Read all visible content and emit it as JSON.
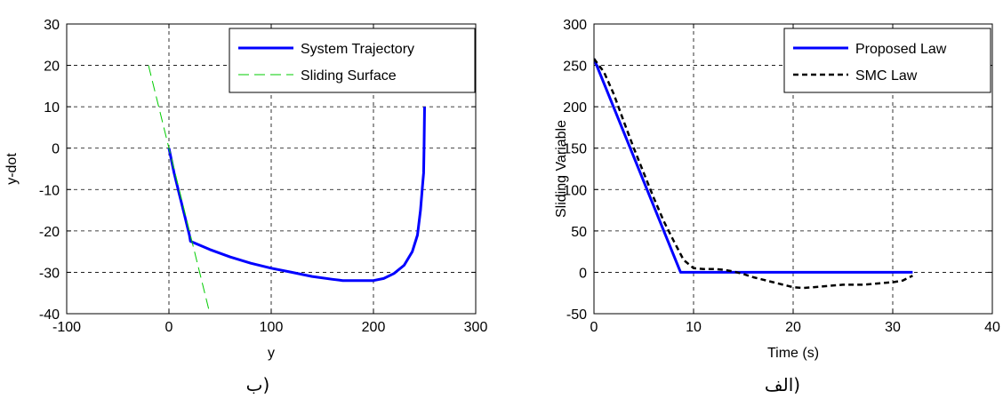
{
  "chart_data": [
    {
      "type": "line",
      "caption": "(ب",
      "xlabel": "y",
      "ylabel": "y-dot",
      "xlim": [
        -100,
        300
      ],
      "ylim": [
        -40,
        30
      ],
      "xticks": [
        "-100",
        "0",
        "100",
        "200",
        "300"
      ],
      "yticks": [
        "-40",
        "-30",
        "-20",
        "-10",
        "0",
        "10",
        "20",
        "30"
      ],
      "grid": true,
      "legend_position": "top-right",
      "series": [
        {
          "name": "System Trajectory",
          "color": "#0000ff",
          "style": "solid",
          "points": [
            [
              0,
              0
            ],
            [
              5,
              -6
            ],
            [
              10,
              -11
            ],
            [
              15,
              -16
            ],
            [
              20,
              -21
            ],
            [
              21,
              -22.5
            ],
            [
              40,
              -24.5
            ],
            [
              60,
              -26.3
            ],
            [
              80,
              -27.8
            ],
            [
              100,
              -29
            ],
            [
              120,
              -30
            ],
            [
              140,
              -31
            ],
            [
              160,
              -31.7
            ],
            [
              170,
              -32
            ],
            [
              200,
              -32
            ],
            [
              210,
              -31.5
            ],
            [
              220,
              -30.3
            ],
            [
              230,
              -28.3
            ],
            [
              238,
              -25
            ],
            [
              243,
              -21
            ],
            [
              246,
              -15
            ],
            [
              248,
              -9
            ],
            [
              249,
              -6
            ],
            [
              249.5,
              0
            ],
            [
              250,
              10
            ]
          ]
        },
        {
          "name": "Sliding Surface",
          "color": "#00cc00",
          "style": "dashed",
          "points": [
            [
              -20,
              20
            ],
            [
              40,
              -40
            ]
          ]
        }
      ]
    },
    {
      "type": "line",
      "caption": "(الف",
      "xlabel": "Time (s)",
      "ylabel": "Sliding Variable",
      "xlim": [
        0,
        40
      ],
      "ylim": [
        -50,
        300
      ],
      "xticks": [
        "0",
        "10",
        "20",
        "30",
        "40"
      ],
      "yticks": [
        "-50",
        "0",
        "50",
        "100",
        "150",
        "200",
        "250",
        "300"
      ],
      "grid": true,
      "legend_position": "top-right",
      "series": [
        {
          "name": "Proposed Law",
          "color": "#0000ff",
          "style": "solid",
          "points": [
            [
              0,
              258
            ],
            [
              8.7,
              0
            ],
            [
              32,
              0
            ]
          ]
        },
        {
          "name": "SMC Law",
          "color": "#000000",
          "style": "dashed",
          "points": [
            [
              0,
              258
            ],
            [
              1,
              242
            ],
            [
              2,
              215
            ],
            [
              3,
              182
            ],
            [
              4,
              150
            ],
            [
              5,
              120
            ],
            [
              6,
              90
            ],
            [
              7,
              62
            ],
            [
              8,
              38
            ],
            [
              9,
              15
            ],
            [
              10,
              5
            ],
            [
              11,
              4
            ],
            [
              12,
              4
            ],
            [
              13,
              3
            ],
            [
              14,
              1
            ],
            [
              15,
              -2
            ],
            [
              16,
              -6
            ],
            [
              17,
              -9
            ],
            [
              18,
              -12
            ],
            [
              19,
              -15
            ],
            [
              20,
              -18
            ],
            [
              21,
              -19
            ],
            [
              22,
              -18
            ],
            [
              23,
              -17
            ],
            [
              24,
              -16
            ],
            [
              25,
              -15
            ],
            [
              26,
              -15
            ],
            [
              27,
              -15
            ],
            [
              28,
              -14
            ],
            [
              29,
              -13
            ],
            [
              30,
              -12
            ],
            [
              31,
              -10
            ],
            [
              32,
              -4
            ]
          ]
        }
      ]
    }
  ]
}
